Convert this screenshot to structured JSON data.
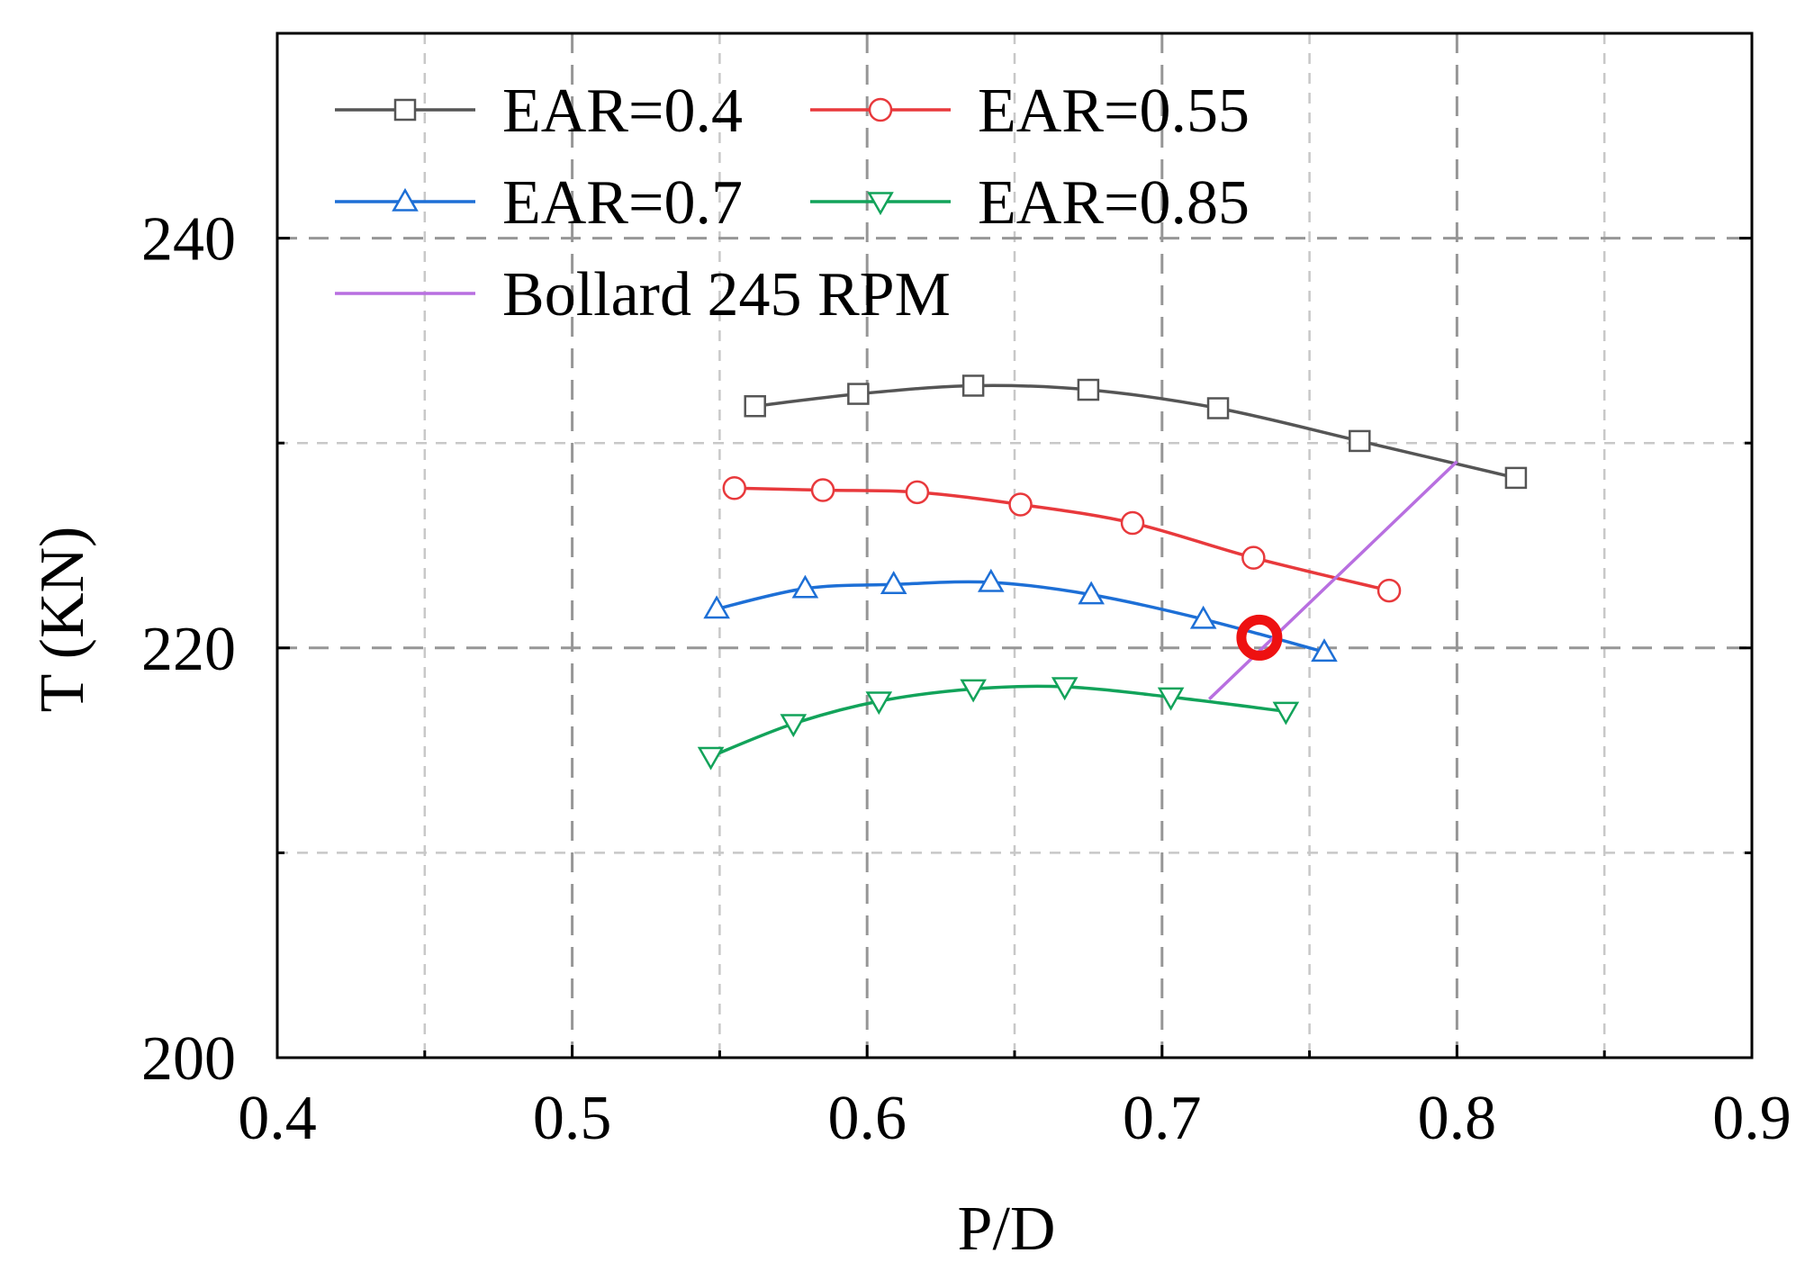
{
  "chart_data": {
    "type": "line",
    "title": "",
    "xlabel": "P/D",
    "ylabel": "T (KN)",
    "xlim": [
      0.4,
      0.9
    ],
    "ylim": [
      200,
      250
    ],
    "xticks": [
      0.4,
      0.5,
      0.6,
      0.7,
      0.8,
      0.9
    ],
    "xtick_labels": [
      "0.4",
      "0.5",
      "0.6",
      "0.7",
      "0.8",
      "0.9"
    ],
    "yticks": [
      200,
      220,
      240
    ],
    "ytick_labels": [
      "200",
      "220",
      "240"
    ],
    "minor_grid_x": [
      0.45,
      0.55,
      0.65,
      0.75,
      0.85
    ],
    "minor_grid_y": [
      210,
      230
    ],
    "grid": true,
    "legend_position": "top-left",
    "series": [
      {
        "name": "EAR=0.4",
        "label": "EAR=0.4",
        "color": "#555555",
        "marker": "square",
        "x": [
          0.562,
          0.597,
          0.636,
          0.675,
          0.719,
          0.767,
          0.82
        ],
        "y": [
          231.8,
          232.4,
          232.8,
          232.6,
          231.7,
          230.1,
          228.3
        ]
      },
      {
        "name": "EAR=0.55",
        "label": "EAR=0.55",
        "color": "#e8393c",
        "marker": "circle",
        "x": [
          0.555,
          0.585,
          0.617,
          0.652,
          0.69,
          0.731,
          0.777
        ],
        "y": [
          227.8,
          227.7,
          227.6,
          227.0,
          226.1,
          224.4,
          222.8
        ]
      },
      {
        "name": "EAR=0.7",
        "label": "EAR=0.7",
        "color": "#1d6fd6",
        "marker": "triangle-up",
        "x": [
          0.549,
          0.579,
          0.609,
          0.642,
          0.676,
          0.714,
          0.755
        ],
        "y": [
          221.9,
          222.9,
          223.1,
          223.2,
          222.6,
          221.4,
          219.8
        ]
      },
      {
        "name": "EAR=0.85",
        "label": "EAR=0.85",
        "color": "#12a35a",
        "marker": "triangle-down",
        "x": [
          0.547,
          0.575,
          0.604,
          0.636,
          0.667,
          0.703,
          0.742
        ],
        "y": [
          214.7,
          216.3,
          217.4,
          218.0,
          218.1,
          217.6,
          216.9
        ]
      },
      {
        "name": "Bollard 245 RPM",
        "label": "Bollard 245 RPM",
        "color": "#b86fe0",
        "marker": "none",
        "x": [
          0.716,
          0.8
        ],
        "y": [
          217.5,
          229.1
        ]
      }
    ],
    "annotations": [
      {
        "type": "circle-marker",
        "x": 0.733,
        "y": 220.5,
        "color": "#ee1111"
      }
    ]
  }
}
